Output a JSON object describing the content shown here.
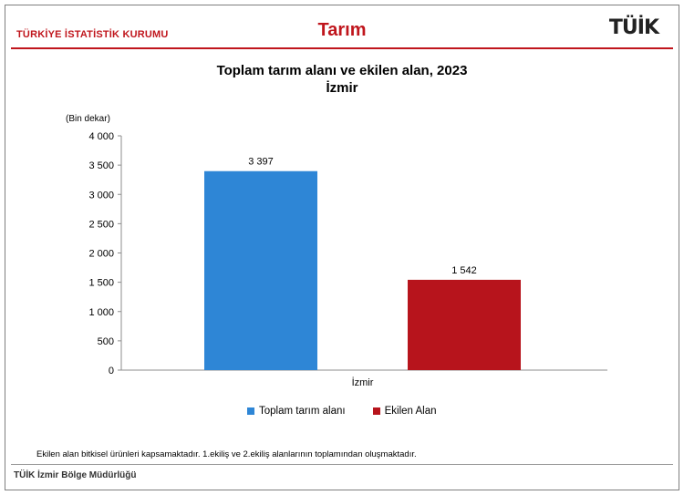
{
  "header": {
    "org": "TÜRKİYE İSTATİSTİK KURUMU",
    "topic": "Tarım",
    "logo": "TÜİK"
  },
  "chart_data": {
    "type": "bar",
    "title": "Toplam tarım alanı ve ekilen alan, 2023",
    "subtitle": "İzmir",
    "ylabel": "(Bin dekar)",
    "ylim": [
      0,
      4000
    ],
    "yticks": [
      0,
      500,
      1000,
      1500,
      2000,
      2500,
      3000,
      3500,
      4000
    ],
    "ytick_labels": [
      "0",
      "500",
      "1 000",
      "1 500",
      "2 000",
      "2 500",
      "3 000",
      "3 500",
      "4 000"
    ],
    "categories": [
      "İzmir"
    ],
    "series": [
      {
        "name": "Toplam tarım alanı",
        "values": [
          3397
        ],
        "label": "3 397",
        "color": "#2e86d6"
      },
      {
        "name": "Ekilen Alan",
        "values": [
          1542
        ],
        "label": "1 542",
        "color": "#b7141c"
      }
    ],
    "legend": "bottom",
    "grid": false
  },
  "footnote": "Ekilen alan bitkisel ürünleri kapsamaktadır. 1.ekiliş ve 2.ekiliş alanlarının toplamından oluşmaktadır.",
  "footer": "TÜİK İzmir Bölge Müdürlüğü"
}
